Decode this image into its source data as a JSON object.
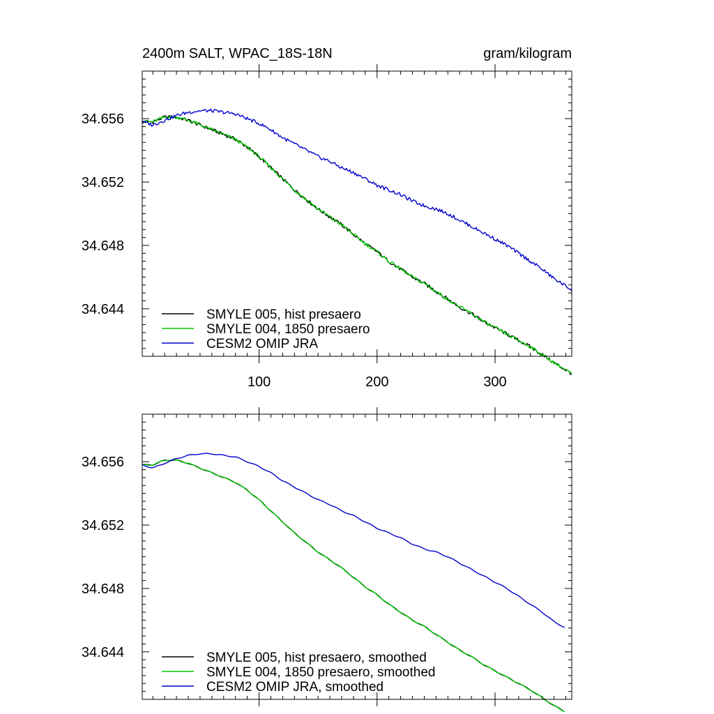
{
  "chart_data": [
    {
      "type": "line",
      "title": "2400m SALT, WPAC_18S-18N",
      "units": "gram/kilogram",
      "xlim": [
        1,
        365
      ],
      "ylim": [
        34.641,
        34.659
      ],
      "x_ticks": [
        100,
        200,
        300
      ],
      "x_tick_labels": [
        "100",
        "200",
        "300"
      ],
      "y_ticks": [
        34.644,
        34.648,
        34.652,
        34.656
      ],
      "y_tick_labels": [
        "34.644",
        "34.648",
        "34.652",
        "34.656"
      ],
      "legend_position": "bottom-left",
      "noisy": true,
      "series": [
        {
          "name": "SMYLE 005, hist presaero",
          "color": "#000000",
          "x": [
            1,
            10,
            20,
            30,
            40,
            50,
            60,
            70,
            80,
            90,
            100,
            110,
            120,
            130,
            140,
            150,
            160,
            170,
            180,
            190,
            200,
            210,
            220,
            230,
            240,
            250,
            260,
            270,
            280,
            290,
            300,
            310,
            320,
            330,
            340,
            350,
            365
          ],
          "y": [
            34.6558,
            34.6558,
            34.6561,
            34.6561,
            34.6559,
            34.6556,
            34.6553,
            34.655,
            34.6547,
            34.6542,
            34.6536,
            34.6529,
            34.6522,
            34.6515,
            34.6509,
            34.6503,
            34.6498,
            34.6493,
            34.6487,
            34.6481,
            34.6476,
            34.647,
            34.6465,
            34.646,
            34.6456,
            34.6451,
            34.6446,
            34.6441,
            34.6437,
            34.6432,
            34.6428,
            34.6424,
            34.642,
            34.6416,
            34.6411,
            34.6406,
            34.6399
          ]
        },
        {
          "name": "SMYLE 004, 1850 presaero",
          "color": "#00cc00",
          "x": [
            1,
            10,
            20,
            30,
            40,
            50,
            60,
            70,
            80,
            90,
            100,
            110,
            120,
            130,
            140,
            150,
            160,
            170,
            180,
            190,
            200,
            210,
            220,
            230,
            240,
            250,
            260,
            270,
            280,
            290,
            300,
            310,
            320,
            330,
            340,
            350,
            365
          ],
          "y": [
            34.6558,
            34.6558,
            34.6561,
            34.6561,
            34.6559,
            34.6556,
            34.6553,
            34.655,
            34.6547,
            34.6542,
            34.6536,
            34.6529,
            34.6522,
            34.6515,
            34.6509,
            34.6503,
            34.6498,
            34.6493,
            34.6487,
            34.6481,
            34.6476,
            34.647,
            34.6465,
            34.646,
            34.6456,
            34.6451,
            34.6446,
            34.6441,
            34.6437,
            34.6432,
            34.6428,
            34.6424,
            34.642,
            34.6416,
            34.6411,
            34.6406,
            34.6399
          ]
        },
        {
          "name": "CESM2 OMIP JRA",
          "color": "#0000cc",
          "x": [
            1,
            10,
            20,
            30,
            40,
            50,
            60,
            70,
            80,
            90,
            100,
            110,
            120,
            130,
            140,
            150,
            160,
            170,
            180,
            190,
            200,
            210,
            220,
            230,
            240,
            250,
            260,
            270,
            280,
            290,
            300,
            310,
            320,
            330,
            340,
            350,
            365
          ],
          "y": [
            34.6558,
            34.6556,
            34.6559,
            34.6562,
            34.6564,
            34.6565,
            34.6565,
            34.6564,
            34.6563,
            34.656,
            34.6557,
            34.6553,
            34.6548,
            34.6544,
            34.654,
            34.6536,
            34.6533,
            34.6529,
            34.6526,
            34.6522,
            34.6518,
            34.6515,
            34.6512,
            34.6508,
            34.6505,
            34.6503,
            34.65,
            34.6496,
            34.6492,
            34.6488,
            34.6484,
            34.648,
            34.6475,
            34.647,
            34.6465,
            34.6459,
            34.6452
          ]
        }
      ]
    },
    {
      "type": "line",
      "title": "",
      "units": "",
      "xlim": [
        1,
        365
      ],
      "ylim": [
        34.641,
        34.659
      ],
      "x_ticks": [
        100,
        200,
        300
      ],
      "x_tick_labels": [
        "",
        "",
        ""
      ],
      "y_ticks": [
        34.644,
        34.648,
        34.652,
        34.656
      ],
      "y_tick_labels": [
        "34.644",
        "34.648",
        "34.652",
        "34.656"
      ],
      "legend_position": "bottom-left",
      "noisy": false,
      "series": [
        {
          "name": "SMYLE 005, hist presaero, smoothed",
          "color": "#000000",
          "x": [
            1,
            10,
            20,
            30,
            40,
            50,
            60,
            70,
            80,
            90,
            100,
            110,
            120,
            130,
            140,
            150,
            160,
            170,
            180,
            190,
            200,
            210,
            220,
            230,
            240,
            250,
            260,
            270,
            280,
            290,
            300,
            310,
            320,
            330,
            340,
            350,
            360
          ],
          "y": [
            34.6558,
            34.6558,
            34.6561,
            34.6561,
            34.6559,
            34.6556,
            34.6553,
            34.655,
            34.6547,
            34.6542,
            34.6536,
            34.6529,
            34.6522,
            34.6515,
            34.6509,
            34.6503,
            34.6498,
            34.6493,
            34.6487,
            34.6481,
            34.6476,
            34.647,
            34.6465,
            34.646,
            34.6456,
            34.6451,
            34.6446,
            34.6441,
            34.6437,
            34.6432,
            34.6428,
            34.6424,
            34.642,
            34.6416,
            34.6411,
            34.6406,
            34.6402
          ]
        },
        {
          "name": "SMYLE 004, 1850 presaero, smoothed",
          "color": "#00cc00",
          "x": [
            1,
            10,
            20,
            30,
            40,
            50,
            60,
            70,
            80,
            90,
            100,
            110,
            120,
            130,
            140,
            150,
            160,
            170,
            180,
            190,
            200,
            210,
            220,
            230,
            240,
            250,
            260,
            270,
            280,
            290,
            300,
            310,
            320,
            330,
            340,
            350,
            360
          ],
          "y": [
            34.6558,
            34.6558,
            34.6561,
            34.6561,
            34.6559,
            34.6556,
            34.6553,
            34.655,
            34.6547,
            34.6542,
            34.6536,
            34.6529,
            34.6522,
            34.6515,
            34.6509,
            34.6503,
            34.6498,
            34.6493,
            34.6487,
            34.6481,
            34.6476,
            34.647,
            34.6465,
            34.646,
            34.6456,
            34.6451,
            34.6446,
            34.6441,
            34.6437,
            34.6432,
            34.6428,
            34.6424,
            34.642,
            34.6416,
            34.6411,
            34.6406,
            34.6402
          ]
        },
        {
          "name": "CESM2 OMIP JRA, smoothed",
          "color": "#0000cc",
          "x": [
            1,
            10,
            20,
            30,
            40,
            50,
            60,
            70,
            80,
            90,
            100,
            110,
            120,
            130,
            140,
            150,
            160,
            170,
            180,
            190,
            200,
            210,
            220,
            230,
            240,
            250,
            260,
            270,
            280,
            290,
            300,
            310,
            320,
            330,
            340,
            350,
            360
          ],
          "y": [
            34.6558,
            34.6556,
            34.6559,
            34.6562,
            34.6564,
            34.6565,
            34.6565,
            34.6564,
            34.6563,
            34.656,
            34.6557,
            34.6553,
            34.6548,
            34.6544,
            34.654,
            34.6536,
            34.6533,
            34.6529,
            34.6526,
            34.6522,
            34.6518,
            34.6515,
            34.6512,
            34.6508,
            34.6505,
            34.6503,
            34.65,
            34.6496,
            34.6492,
            34.6488,
            34.6484,
            34.648,
            34.6475,
            34.647,
            34.6465,
            34.6459,
            34.6455
          ]
        }
      ]
    }
  ]
}
